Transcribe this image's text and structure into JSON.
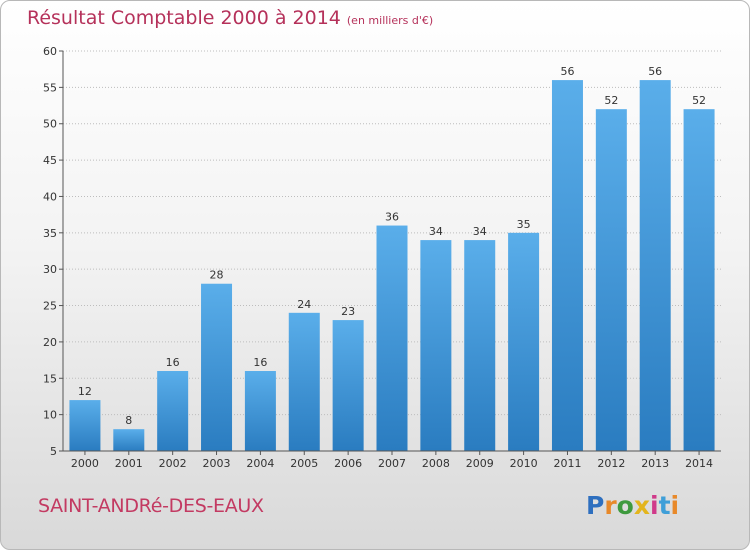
{
  "title": "Résultat Comptable 2000 à 2014",
  "subtitle": "(en milliers d'€)",
  "commune": "SAINT-ANDRé-DES-EAUX",
  "logo": {
    "letters": [
      "P",
      "r",
      "o",
      "x",
      "i",
      "t",
      "i"
    ],
    "colors": [
      "#2e6fbf",
      "#e8892a",
      "#3e9a3e",
      "#e3b51d",
      "#d03a8a",
      "#3f9fd8",
      "#e8892a"
    ]
  },
  "chart_data": {
    "type": "bar",
    "title": "Résultat Comptable 2000 à 2014",
    "unit": "(en milliers d'€)",
    "categories": [
      "2000",
      "2001",
      "2002",
      "2003",
      "2004",
      "2005",
      "2006",
      "2007",
      "2008",
      "2009",
      "2010",
      "2011",
      "2012",
      "2013",
      "2014"
    ],
    "values": [
      12,
      8,
      16,
      28,
      16,
      24,
      23,
      36,
      34,
      34,
      35,
      56,
      52,
      56,
      52
    ],
    "ylim": [
      5,
      60
    ],
    "yticks": [
      5,
      10,
      15,
      20,
      25,
      30,
      35,
      40,
      45,
      50,
      55,
      60
    ],
    "bar_color": "#3a90d6",
    "xlabel": "",
    "ylabel": ""
  }
}
